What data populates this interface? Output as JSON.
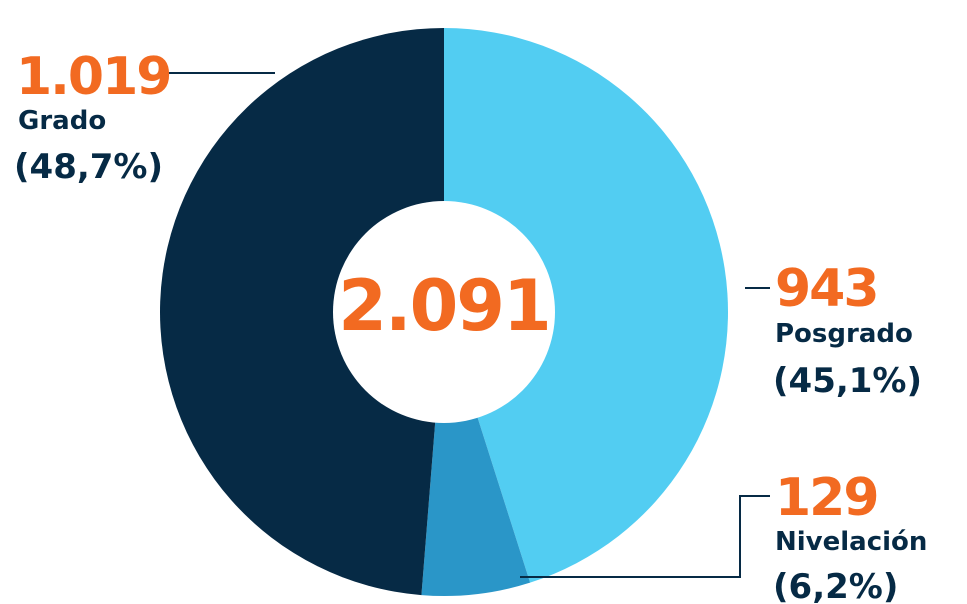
{
  "chart_data": {
    "type": "pie",
    "total": "2.091",
    "slices": [
      {
        "value_label": "1.019",
        "value": 1019,
        "name": "Grado",
        "percent_label": "(48,7%)",
        "percent": 48.7,
        "color": "#062a45"
      },
      {
        "value_label": "943",
        "value": 943,
        "name": "Posgrado",
        "percent_label": "(45,1%)",
        "percent": 45.1,
        "color": "#52cdf2"
      },
      {
        "value_label": "129",
        "value": 129,
        "name": "Nivelación",
        "percent_label": "(6,2%)",
        "percent": 6.2,
        "color": "#2a96c8"
      }
    ]
  },
  "colors": {
    "accent": "#f26a21",
    "label_text": "#062a45",
    "leader_line": "#062a45"
  }
}
